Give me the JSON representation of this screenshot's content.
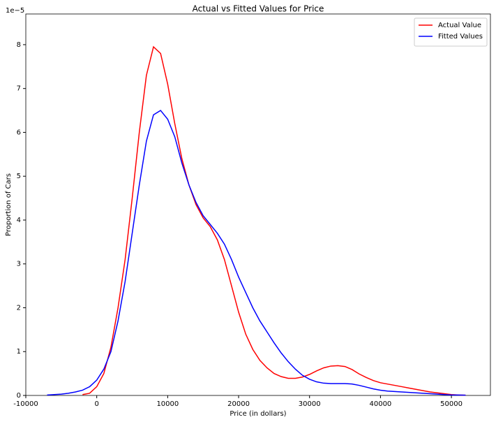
{
  "chart_data": {
    "type": "line",
    "title": "Actual vs Fitted Values for Price",
    "x_label": "Price (in dollars)",
    "y_label": "Proportion of Cars",
    "y_offset_label": "1e−5",
    "x": [
      -7000,
      -6000,
      -5000,
      -4000,
      -3000,
      -2000,
      -1000,
      0,
      1000,
      2000,
      3000,
      4000,
      5000,
      6000,
      7000,
      8000,
      9000,
      10000,
      11000,
      12000,
      13000,
      14000,
      15000,
      16000,
      17000,
      18000,
      19000,
      20000,
      21000,
      22000,
      23000,
      24000,
      25000,
      26000,
      27000,
      28000,
      29000,
      30000,
      31000,
      32000,
      33000,
      34000,
      35000,
      36000,
      37000,
      38000,
      39000,
      40000,
      41000,
      42000,
      43000,
      44000,
      45000,
      46000,
      47000,
      48000,
      49000,
      50000,
      51000,
      52000
    ],
    "series": [
      {
        "name": "Actual Value",
        "color": "#ff0000",
        "values": [
          null,
          null,
          null,
          null,
          null,
          0.02,
          0.05,
          0.2,
          0.5,
          1.1,
          2.0,
          3.1,
          4.5,
          6.0,
          7.3,
          7.95,
          7.8,
          7.1,
          6.2,
          5.4,
          4.8,
          4.35,
          4.05,
          3.85,
          3.55,
          3.1,
          2.5,
          1.9,
          1.4,
          1.05,
          0.8,
          0.63,
          0.5,
          0.43,
          0.39,
          0.39,
          0.42,
          0.48,
          0.56,
          0.63,
          0.67,
          0.68,
          0.66,
          0.59,
          0.49,
          0.41,
          0.34,
          0.29,
          0.26,
          0.23,
          0.2,
          0.17,
          0.14,
          0.11,
          0.08,
          0.06,
          0.04,
          0.02,
          0.01,
          0.005
        ]
      },
      {
        "name": "Fitted Values",
        "color": "#0000ff",
        "values": [
          0.01,
          0.02,
          0.03,
          0.05,
          0.08,
          0.12,
          0.2,
          0.35,
          0.6,
          1.0,
          1.7,
          2.6,
          3.7,
          4.8,
          5.8,
          6.4,
          6.5,
          6.3,
          5.9,
          5.3,
          4.8,
          4.4,
          4.1,
          3.9,
          3.7,
          3.45,
          3.1,
          2.7,
          2.35,
          2.0,
          1.7,
          1.45,
          1.2,
          0.97,
          0.77,
          0.6,
          0.46,
          0.37,
          0.31,
          0.28,
          0.27,
          0.27,
          0.27,
          0.26,
          0.23,
          0.19,
          0.15,
          0.12,
          0.1,
          0.09,
          0.08,
          0.07,
          0.06,
          0.05,
          0.04,
          0.03,
          0.02,
          0.01,
          0.01,
          0.005
        ]
      }
    ],
    "xlim": [
      -10000,
      55500
    ],
    "xticks": [
      -10000,
      0,
      10000,
      20000,
      30000,
      40000,
      50000
    ],
    "ylim": [
      0,
      8.7
    ],
    "yticks": [
      0,
      1,
      2,
      3,
      4,
      5,
      6,
      7,
      8
    ],
    "legend": "upper right"
  }
}
